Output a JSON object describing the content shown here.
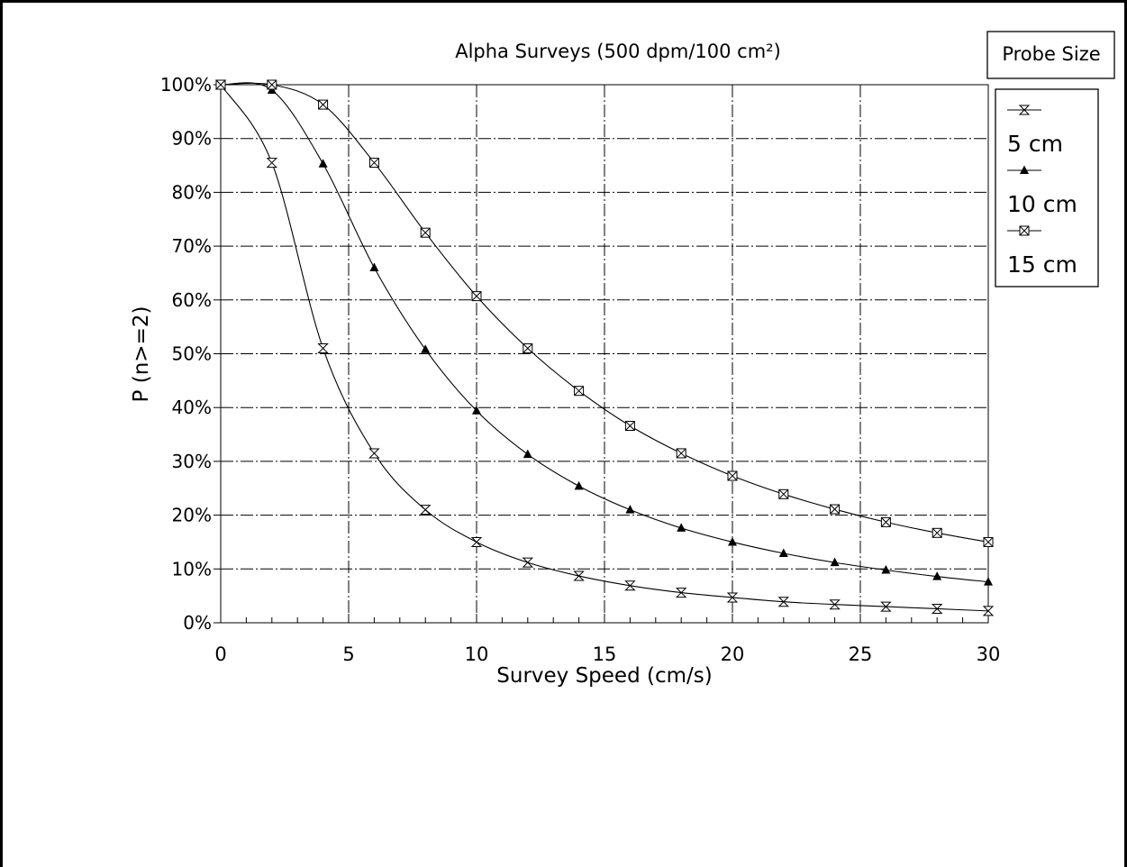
{
  "chart_data": {
    "type": "line",
    "title": "Alpha Surveys  (500 dpm/100 cm²)",
    "xlabel": "Survey Speed (cm/s)",
    "ylabel": "P (n>=2)",
    "xlim": [
      0,
      30
    ],
    "ylim": [
      0,
      100
    ],
    "x_ticks": [
      "0",
      "5",
      "10",
      "15",
      "20",
      "25",
      "30"
    ],
    "y_ticks": [
      "0%",
      "10%",
      "20%",
      "30%",
      "40%",
      "50%",
      "60%",
      "70%",
      "80%",
      "90%",
      "100%"
    ],
    "grid": true,
    "legend_title": "Probe Size",
    "legend_position": "right",
    "x": [
      0,
      2,
      4,
      6,
      8,
      10,
      12,
      14,
      16,
      18,
      20,
      22,
      24,
      26,
      28,
      30
    ],
    "series": [
      {
        "name": "5 cm",
        "marker": "hourglass",
        "values": [
          100,
          85.5,
          51,
          31.5,
          21,
          15,
          11.2,
          8.7,
          6.9,
          5.6,
          4.7,
          3.9,
          3.4,
          3.0,
          2.6,
          2.2
        ]
      },
      {
        "name": "10 cm",
        "marker": "triangle",
        "values": [
          100,
          99,
          85.3,
          66,
          50.8,
          39.4,
          31.3,
          25.4,
          21,
          17.6,
          15,
          12.9,
          11.2,
          9.8,
          8.6,
          7.6
        ]
      },
      {
        "name": "15 cm",
        "marker": "boxed-x",
        "values": [
          100,
          100,
          96.3,
          85.5,
          72.5,
          60.7,
          51,
          43.1,
          36.6,
          31.5,
          27.3,
          23.9,
          21.1,
          18.7,
          16.7,
          15
        ]
      }
    ]
  }
}
